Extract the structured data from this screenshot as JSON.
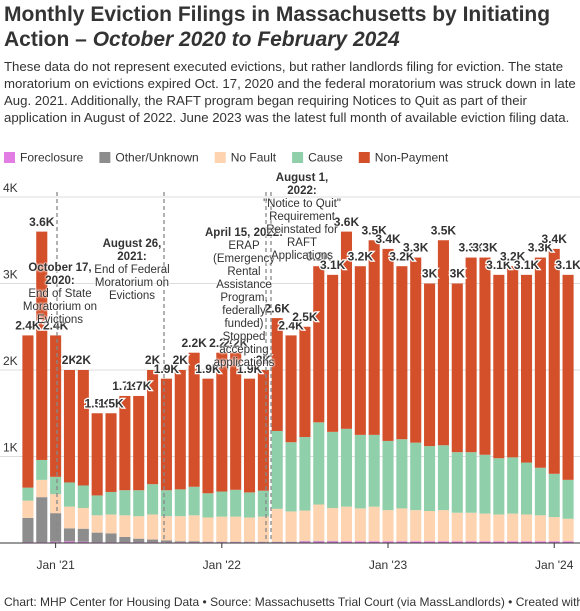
{
  "chart_data": {
    "type": "stacked_bar",
    "title": "Monthly Eviction Filings in Massachusetts by Initiating Action – ",
    "title_period": "October 2020 to February 2024",
    "description": "These data do not represent executed evictions, but rather landlords filing for eviction. The state moratorium on evictions expired Oct. 17, 2020 and the federal moratorium was struck down in late Aug. 2021. Additionally, the RAFT program began requiring Notices to Quit as part of their application in August of 2022. June 2023 was the latest full month of available eviction filing data.",
    "footer": "Chart: MHP Center for Housing Data • Source: Massachusetts Trial Court (via MassLandlords) • Created with Datawrapper",
    "categories": [
      null,
      null,
      "Jan '21",
      null,
      null,
      null,
      null,
      null,
      null,
      null,
      null,
      null,
      null,
      null,
      "Jan '22",
      null,
      null,
      null,
      null,
      null,
      null,
      null,
      null,
      null,
      null,
      null,
      "Jan '23",
      null,
      null,
      null,
      null,
      null,
      null,
      null,
      null,
      null,
      null,
      null,
      "Jan '24",
      null
    ],
    "series": [
      {
        "name": "Foreclosure",
        "color": "#e27ee3",
        "values": [
          10,
          10,
          15,
          20,
          15,
          10,
          10,
          10,
          10,
          10,
          10,
          10,
          10,
          10,
          10,
          10,
          10,
          10,
          10,
          10,
          20,
          20,
          20,
          20,
          20,
          20,
          20,
          20,
          20,
          20,
          20,
          20,
          20,
          20,
          20,
          20,
          20,
          20,
          20,
          20
        ]
      },
      {
        "name": "Other/Unknown",
        "color": "#8d8d8d",
        "values": [
          280,
          520,
          330,
          150,
          150,
          110,
          100,
          60,
          40,
          30,
          20,
          10,
          10,
          5,
          5,
          5,
          5,
          5,
          5,
          5,
          5,
          5,
          5,
          0,
          0,
          0,
          0,
          0,
          0,
          0,
          0,
          0,
          0,
          0,
          0,
          0,
          0,
          0,
          0,
          0
        ]
      },
      {
        "name": "No Fault",
        "color": "#fdd3b0",
        "values": [
          200,
          200,
          220,
          250,
          240,
          200,
          220,
          250,
          260,
          290,
          280,
          290,
          300,
          280,
          290,
          290,
          280,
          290,
          380,
          350,
          350,
          420,
          380,
          400,
          380,
          400,
          360,
          380,
          360,
          350,
          360,
          330,
          330,
          320,
          310,
          320,
          310,
          300,
          280,
          260
        ]
      },
      {
        "name": "Cause",
        "color": "#8fcfaa",
        "values": [
          150,
          230,
          200,
          280,
          260,
          230,
          260,
          290,
          300,
          350,
          300,
          310,
          330,
          280,
          290,
          310,
          290,
          300,
          900,
          800,
          850,
          950,
          880,
          900,
          850,
          830,
          800,
          800,
          780,
          750,
          750,
          700,
          700,
          680,
          650,
          650,
          600,
          550,
          500,
          450
        ]
      },
      {
        "name": "Non-Payment",
        "color": "#d4502b",
        "values": [
          1760,
          2640,
          1635,
          1300,
          1335,
          950,
          910,
          1090,
          1090,
          1320,
          1290,
          1380,
          1550,
          1325,
          1605,
          1585,
          1315,
          1395,
          1305,
          1235,
          1275,
          1805,
          1815,
          2280,
          1950,
          2250,
          2220,
          2000,
          2140,
          1880,
          2370,
          1950,
          2250,
          2280,
          2120,
          2210,
          2170,
          2430,
          2600,
          2370
        ]
      }
    ],
    "totals": {
      "values": [
        2400,
        3600,
        2400,
        2000,
        2000,
        1500,
        1500,
        1700,
        1700,
        2000,
        1900,
        2000,
        2200,
        1900,
        2200,
        2200,
        1900,
        2000,
        2600,
        2400,
        2500,
        3200,
        3100,
        3600,
        3200,
        3500,
        3400,
        3200,
        3300,
        3000,
        3500,
        3000,
        3300,
        3300,
        3100,
        3200,
        3100,
        3300,
        3400,
        3100
      ],
      "value_labels": [
        "2.4K",
        "3.6K",
        "2.4K",
        "2K",
        "2K",
        "1.5K",
        "1.5K",
        "1.7K",
        "1.7K",
        "2K",
        "1.9K",
        "2K",
        "2.2K",
        "1.9K",
        "2.2K",
        "2.2K",
        "1.9K",
        "2K",
        "2.6K",
        "2.4K",
        "2.5K",
        "3.2K",
        "3.1K",
        "3.6K",
        "3.2K",
        "3.5K",
        "3.4K",
        "3.2K",
        "3.3K",
        "3K",
        "3.5K",
        "3K",
        "3.3K",
        "3.3K",
        "3.1K",
        "3.2K",
        "3.1K",
        "3.3K",
        "3.4K",
        "3.1K"
      ]
    },
    "ylim": [
      0,
      4000
    ],
    "yticks": [
      {
        "value": 1000,
        "label": "1K"
      },
      {
        "value": 2000,
        "label": "2K"
      },
      {
        "value": 3000,
        "label": "3K"
      },
      {
        "value": 4000,
        "label": "4K"
      }
    ],
    "grid": true,
    "annotations": [
      {
        "heading": "October 17, 2020:",
        "text": "End of State Moratorium on Evictions"
      },
      {
        "heading": "August 26, 2021:",
        "text": "End of Federal Moratorium on Evictions"
      },
      {
        "heading": "April 15, 2022:",
        "text": "ERAP (Emergency Rental Assistance Program, federally funded) Stopped accepting applications"
      },
      {
        "heading": "August 1, 2022:",
        "text": "\"Notice to Quit\" Requirement Reinstated for RAFT Applications"
      }
    ]
  }
}
